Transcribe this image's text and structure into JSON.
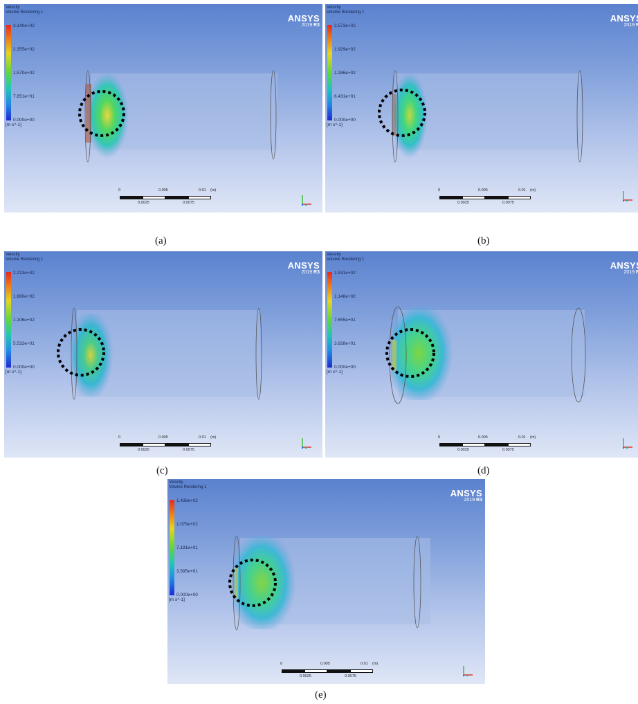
{
  "panels": [
    {
      "header": {
        "line1": "Velocity",
        "line2": "Volume Rendering 1"
      },
      "ticks": [
        "3.140e+02",
        "2.355e+02",
        "1.570e+02",
        "7.851e+01",
        "0.000e+00"
      ],
      "unit": "[m s^-1]",
      "logo": {
        "brand": "ANSYS",
        "year": "2019",
        "release": "R3"
      },
      "scale": {
        "t0": "0",
        "t1": "0.005",
        "t2": "0.01",
        "unit": "(m)",
        "m1": "0.0025",
        "m2": "0.0075"
      },
      "caption": "(a)"
    },
    {
      "header": {
        "line1": "Velocity",
        "line2": "Volume Rendering 1"
      },
      "ticks": [
        "2.573e+02",
        "1.929e+02",
        "1.286e+02",
        "6.431e+01",
        "0.000e+00"
      ],
      "unit": "[m s^-1]",
      "logo": {
        "brand": "ANSYS",
        "year": "2019",
        "release": "R3"
      },
      "scale": {
        "t0": "0",
        "t1": "0.005",
        "t2": "0.01",
        "unit": "(m)",
        "m1": "0.0025",
        "m2": "0.0075"
      },
      "caption": "(b)"
    },
    {
      "header": {
        "line1": "Velocity",
        "line2": "Volume Rendering 1"
      },
      "ticks": [
        "2.213e+02",
        "1.660e+02",
        "1.106e+02",
        "5.532e+01",
        "0.000e+00"
      ],
      "unit": "[m s^-1]",
      "logo": {
        "brand": "ANSYS",
        "year": "2019",
        "release": "R3"
      },
      "scale": {
        "t0": "0",
        "t1": "0.005",
        "t2": "0.01",
        "unit": "(m)",
        "m1": "0.0025",
        "m2": "0.0075"
      },
      "caption": "(c)"
    },
    {
      "header": {
        "line1": "Velocity",
        "line2": "Volume Rendering 1"
      },
      "ticks": [
        "1.531e+02",
        "1.148e+02",
        "7.655e+01",
        "3.828e+01",
        "0.000e+00"
      ],
      "unit": "[m s^-1]",
      "logo": {
        "brand": "ANSYS",
        "year": "2019",
        "release": "R3"
      },
      "scale": {
        "t0": "0",
        "t1": "0.005",
        "t2": "0.01",
        "unit": "(m)",
        "m1": "0.0025",
        "m2": "0.0075"
      },
      "caption": "(d)"
    },
    {
      "header": {
        "line1": "Velocity",
        "line2": "Volume Rendering 1"
      },
      "ticks": [
        "1.438e+02",
        "1.079e+02",
        "7.191e+01",
        "3.595e+01",
        "0.000e+00"
      ],
      "unit": "[m s^-1]",
      "logo": {
        "brand": "ANSYS",
        "year": "2019",
        "release": "R3"
      },
      "scale": {
        "t0": "0",
        "t1": "0.005",
        "t2": "0.01",
        "unit": "(m)",
        "m1": "0.0025",
        "m2": "0.0075"
      },
      "caption": "(e)"
    }
  ],
  "colors": {
    "highlight_circle": "#000000",
    "axis_x": "#e0362a",
    "axis_y": "#3fbf3f",
    "axis_z": "#1a6bff"
  }
}
